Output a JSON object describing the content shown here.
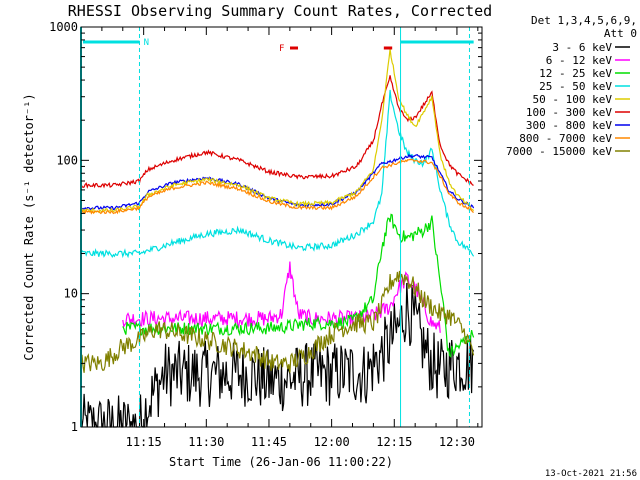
{
  "chart_data": {
    "type": "line",
    "title": "RHESSI Observing Summary Count Rates, Corrected",
    "xlabel": "Start Time (26-Jan-06 11:00:22)",
    "ylabel": "Corrected Count Rate (s⁻¹ detector⁻¹)",
    "yscale": "log",
    "ylim": [
      1,
      1000
    ],
    "xlim": [
      0,
      96
    ],
    "x_ticks": [
      {
        "t": 15,
        "label": "11:15"
      },
      {
        "t": 30,
        "label": "11:30"
      },
      {
        "t": 45,
        "label": "11:45"
      },
      {
        "t": 60,
        "label": "12:00"
      },
      {
        "t": 75,
        "label": "12:15"
      },
      {
        "t": 90,
        "label": "12:30"
      }
    ],
    "y_ticks": [
      {
        "v": 1,
        "label": "1"
      },
      {
        "v": 10,
        "label": "10"
      },
      {
        "v": 100,
        "label": "100"
      },
      {
        "v": 1000,
        "label": "1000"
      }
    ],
    "legend_header": [
      "Det 1,3,4,5,6,9,",
      "Att 0"
    ],
    "legend_placement": "right",
    "series": [
      {
        "name": "3 - 6 keV",
        "color": "#000000",
        "x": [
          0,
          14,
          16,
          20,
          30,
          40,
          45,
          50,
          55,
          60,
          65,
          68,
          72,
          76,
          78,
          80,
          82,
          84,
          86,
          89,
          94
        ],
        "y": [
          1,
          1,
          1.5,
          2.5,
          2.5,
          2.5,
          2.2,
          2.3,
          2.5,
          2.5,
          2.6,
          2.5,
          3.5,
          5.5,
          8,
          6,
          4,
          3,
          2.6,
          3,
          3
        ]
      },
      {
        "name": "6 - 12 keV",
        "color": "#ff00ff",
        "x": [
          10,
          14,
          16,
          25,
          35,
          45,
          48,
          50,
          52,
          55,
          60,
          65,
          70,
          74,
          76,
          78,
          80,
          82,
          84,
          86
        ],
        "y": [
          6.5,
          6.5,
          6.5,
          6.5,
          6.5,
          6.5,
          7,
          16,
          7,
          6.5,
          6.5,
          6.5,
          6.8,
          8,
          11,
          13,
          11,
          8,
          6,
          5.5
        ]
      },
      {
        "name": "12 - 25 keV",
        "color": "#00dd00",
        "x": [
          10,
          14,
          16,
          25,
          35,
          45,
          50,
          55,
          60,
          65,
          70,
          72,
          74,
          76,
          78,
          80,
          82,
          84,
          86,
          87,
          88,
          94
        ],
        "y": [
          5.5,
          5.5,
          5.5,
          5.5,
          5.5,
          5.5,
          5.7,
          6,
          6,
          6.2,
          9,
          22,
          38,
          28,
          26,
          28,
          30,
          35,
          12,
          7,
          3.5,
          5
        ]
      },
      {
        "name": "25 - 50 keV",
        "color": "#00e0e0",
        "x": [
          0,
          8,
          14,
          16,
          22,
          30,
          38,
          45,
          52,
          60,
          66,
          70,
          72,
          74,
          76,
          78,
          80,
          82,
          84,
          86,
          88,
          90,
          94
        ],
        "y": [
          20,
          20,
          20,
          21,
          24,
          28,
          30,
          25,
          22,
          23,
          28,
          35,
          55,
          320,
          170,
          115,
          100,
          95,
          120,
          60,
          35,
          25,
          20
        ]
      },
      {
        "name": "50 - 100 keV",
        "color": "#ddcc00",
        "x": [
          0,
          8,
          14,
          16,
          22,
          30,
          38,
          45,
          52,
          60,
          66,
          70,
          72,
          74,
          76,
          78,
          80,
          82,
          84,
          86,
          88,
          90,
          94
        ],
        "y": [
          42,
          42,
          45,
          55,
          65,
          72,
          65,
          52,
          47,
          48,
          58,
          85,
          200,
          680,
          300,
          220,
          180,
          230,
          300,
          110,
          70,
          55,
          42
        ]
      },
      {
        "name": "100 - 300 keV",
        "color": "#dd0000",
        "x": [
          0,
          8,
          14,
          16,
          22,
          30,
          38,
          45,
          52,
          60,
          66,
          70,
          72,
          74,
          76,
          78,
          80,
          82,
          84,
          86,
          88,
          90,
          94
        ],
        "y": [
          65,
          65,
          70,
          85,
          100,
          115,
          100,
          82,
          75,
          76,
          90,
          140,
          260,
          420,
          250,
          200,
          210,
          260,
          320,
          130,
          95,
          80,
          65
        ]
      },
      {
        "name": "300 - 800 keV",
        "color": "#0000ee",
        "x": [
          0,
          8,
          14,
          16,
          22,
          30,
          38,
          45,
          52,
          60,
          66,
          70,
          72,
          74,
          76,
          78,
          80,
          82,
          84,
          86,
          88,
          90,
          94
        ],
        "y": [
          44,
          44,
          48,
          58,
          68,
          74,
          66,
          52,
          46,
          47,
          58,
          80,
          95,
          98,
          103,
          107,
          108,
          106,
          105,
          80,
          60,
          52,
          44
        ]
      },
      {
        "name": "800 - 7000 keV",
        "color": "#ff8800",
        "x": [
          0,
          8,
          14,
          16,
          22,
          30,
          38,
          45,
          52,
          60,
          66,
          70,
          72,
          74,
          76,
          78,
          80,
          82,
          84,
          86,
          88,
          90,
          94
        ],
        "y": [
          41,
          41,
          44,
          53,
          62,
          68,
          61,
          49,
          44,
          44,
          54,
          75,
          88,
          92,
          96,
          99,
          100,
          98,
          96,
          76,
          57,
          49,
          41
        ]
      },
      {
        "name": "7000 - 15000 keV",
        "color": "#808000",
        "x": [
          0,
          5,
          10,
          14,
          18,
          24,
          30,
          36,
          42,
          46,
          50,
          54,
          58,
          62,
          66,
          70,
          72,
          74,
          76,
          78,
          80,
          82,
          84,
          86,
          88,
          90,
          92,
          94
        ],
        "y": [
          3,
          3,
          4,
          4.5,
          5.5,
          5,
          4.5,
          4,
          3.5,
          3,
          3,
          3.5,
          4.5,
          5.5,
          6,
          6,
          8,
          12,
          14,
          13,
          11,
          9,
          8,
          7,
          7,
          6,
          5,
          3.5
        ]
      }
    ],
    "annotations": {
      "flag_N": "N",
      "flag_F": "F",
      "attenuator_bars_color": "#00e0e0"
    },
    "timestamp": "13-Oct-2021 21:56"
  }
}
